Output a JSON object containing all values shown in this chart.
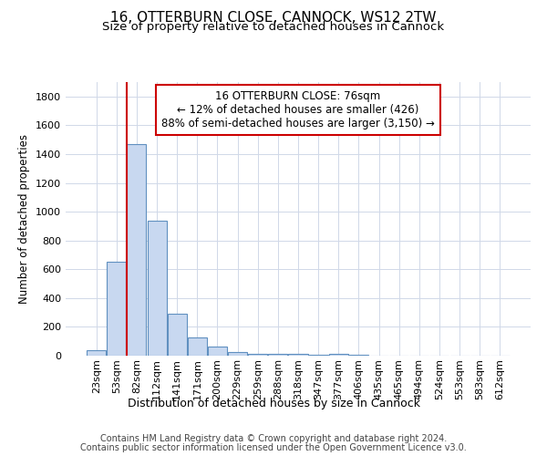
{
  "title1": "16, OTTERBURN CLOSE, CANNOCK, WS12 2TW",
  "title2": "Size of property relative to detached houses in Cannock",
  "xlabel": "Distribution of detached houses by size in Cannock",
  "ylabel": "Number of detached properties",
  "bin_labels": [
    "23sqm",
    "53sqm",
    "82sqm",
    "112sqm",
    "141sqm",
    "171sqm",
    "200sqm",
    "229sqm",
    "259sqm",
    "288sqm",
    "318sqm",
    "347sqm",
    "377sqm",
    "406sqm",
    "435sqm",
    "465sqm",
    "494sqm",
    "524sqm",
    "553sqm",
    "583sqm",
    "612sqm"
  ],
  "bar_heights": [
    40,
    650,
    1470,
    940,
    290,
    125,
    65,
    25,
    15,
    10,
    15,
    5,
    15,
    5,
    0,
    0,
    0,
    0,
    0,
    0,
    0
  ],
  "bar_color": "#c8d8f0",
  "bar_edge_color": "#6090c0",
  "vline_x": 1.5,
  "vline_color": "#cc0000",
  "ylim": [
    0,
    1900
  ],
  "yticks": [
    0,
    200,
    400,
    600,
    800,
    1000,
    1200,
    1400,
    1600,
    1800
  ],
  "annotation_title": "16 OTTERBURN CLOSE: 76sqm",
  "annotation_line1": "← 12% of detached houses are smaller (426)",
  "annotation_line2": "88% of semi-detached houses are larger (3,150) →",
  "annotation_box_color": "#cc0000",
  "grid_color": "#d0d8e8",
  "footer1": "Contains HM Land Registry data © Crown copyright and database right 2024.",
  "footer2": "Contains public sector information licensed under the Open Government Licence v3.0.",
  "title1_fontsize": 11,
  "title2_fontsize": 9.5,
  "ylabel_fontsize": 8.5,
  "xlabel_fontsize": 9,
  "tick_fontsize": 8,
  "annotation_fontsize": 8.5,
  "footer_fontsize": 7
}
